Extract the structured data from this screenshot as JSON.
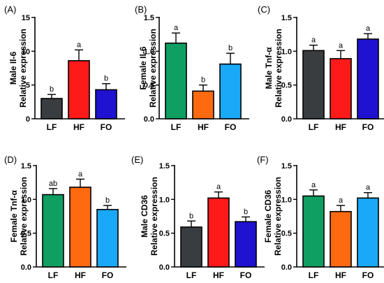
{
  "chart_data": [
    {
      "type": "bar",
      "panel_label": "(A)",
      "ylabel_lines": [
        "Male Il-6",
        "Relative expression"
      ],
      "categories": [
        "LF",
        "HF",
        "FO"
      ],
      "values": [
        3.0,
        8.6,
        4.3
      ],
      "errors": [
        0.6,
        1.6,
        0.9
      ],
      "significance": [
        "b",
        "a",
        "b"
      ],
      "colors": [
        "#3a3d40",
        "#ff1a1a",
        "#1f12d0"
      ],
      "ylim": [
        0,
        15
      ],
      "yticks": [
        0,
        5,
        10,
        15
      ],
      "ytick_labels": [
        "0",
        "5",
        "10",
        "15"
      ]
    },
    {
      "type": "bar",
      "panel_label": "(B)",
      "ylabel_lines": [
        "Female Il-6",
        "Relative expression"
      ],
      "categories": [
        "LF",
        "HF",
        "FO"
      ],
      "values": [
        1.12,
        0.41,
        0.81
      ],
      "errors": [
        0.15,
        0.09,
        0.16
      ],
      "significance": [
        "a",
        "b",
        "b"
      ],
      "colors": [
        "#0f9f62",
        "#ff6a10",
        "#1aa8f8"
      ],
      "ylim": [
        0,
        1.5
      ],
      "yticks": [
        0,
        0.5,
        1.0,
        1.5
      ],
      "ytick_labels": [
        "0.0",
        "0.5",
        "1.0",
        "1.5"
      ]
    },
    {
      "type": "bar",
      "panel_label": "(C)",
      "ylabel_lines": [
        "Male Tnf-α",
        "Relative expression"
      ],
      "categories": [
        "LF",
        "HF",
        "FO"
      ],
      "values": [
        1.01,
        0.89,
        1.18
      ],
      "errors": [
        0.08,
        0.12,
        0.08
      ],
      "significance": [
        "a",
        "a",
        "a"
      ],
      "colors": [
        "#3a3d40",
        "#ff1a1a",
        "#1f12d0"
      ],
      "ylim": [
        0,
        1.5
      ],
      "yticks": [
        0,
        0.5,
        1.0,
        1.5
      ],
      "ytick_labels": [
        "0.0",
        "0.5",
        "1.0",
        "1.5"
      ]
    },
    {
      "type": "bar",
      "panel_label": "(D)",
      "ylabel_lines": [
        "Female Tnf-α",
        "Relative expression"
      ],
      "categories": [
        "LF",
        "HF",
        "FO"
      ],
      "values": [
        1.07,
        1.18,
        0.85
      ],
      "errors": [
        0.09,
        0.12,
        0.06
      ],
      "significance": [
        "ab",
        "a",
        "b"
      ],
      "colors": [
        "#0f9f62",
        "#ff6a10",
        "#1aa8f8"
      ],
      "ylim": [
        0,
        1.5
      ],
      "yticks": [
        0,
        0.5,
        1.0,
        1.5
      ],
      "ytick_labels": [
        "0.0",
        "0.5",
        "1.0",
        "1.5"
      ]
    },
    {
      "type": "bar",
      "panel_label": "(E)",
      "ylabel_lines": [
        "Male CD36",
        "Relative expression"
      ],
      "categories": [
        "LF",
        "HF",
        "FO"
      ],
      "values": [
        0.59,
        1.02,
        0.67
      ],
      "errors": [
        0.09,
        0.09,
        0.07
      ],
      "significance": [
        "b",
        "a",
        "b"
      ],
      "colors": [
        "#3a3d40",
        "#ff1a1a",
        "#1f12d0"
      ],
      "ylim": [
        0,
        1.5
      ],
      "yticks": [
        0,
        0.5,
        1.0,
        1.5
      ],
      "ytick_labels": [
        "0.0",
        "0.5",
        "1.0",
        "1.5"
      ]
    },
    {
      "type": "bar",
      "panel_label": "(F)",
      "ylabel_lines": [
        "Female CD36",
        "Relative expression"
      ],
      "categories": [
        "LF",
        "HF",
        "FO"
      ],
      "values": [
        1.05,
        0.82,
        1.02
      ],
      "errors": [
        0.09,
        0.09,
        0.08
      ],
      "significance": [
        "a",
        "a",
        "a"
      ],
      "colors": [
        "#0f9f62",
        "#ff6a10",
        "#1aa8f8"
      ],
      "ylim": [
        0,
        1.5
      ],
      "yticks": [
        0,
        0.5,
        1.0,
        1.5
      ],
      "ytick_labels": [
        "0.0",
        "0.5",
        "1.0",
        "1.5"
      ]
    }
  ]
}
